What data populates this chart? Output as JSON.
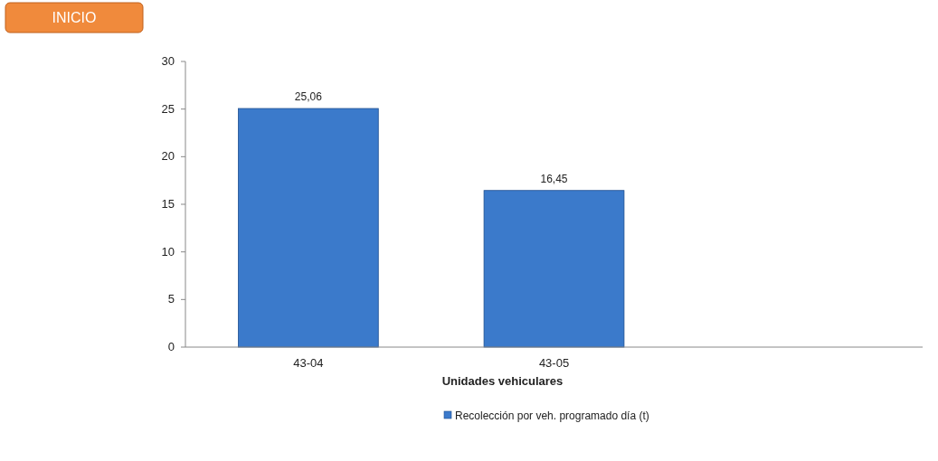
{
  "chart_data": {
    "type": "bar",
    "xlabel": "Unidades vehiculares",
    "categories": [
      "43-04",
      "43-05",
      null
    ],
    "series": [
      {
        "name": "Recolección por veh. programado día (t)",
        "color": "#3b7acb",
        "values": [
          25.06,
          16.45,
          null
        ]
      }
    ],
    "value_labels": [
      "25,06",
      "16,45",
      null
    ],
    "ylim": [
      0,
      30
    ],
    "yticks": [
      0,
      5,
      10,
      15,
      20,
      25,
      30
    ],
    "grid": false,
    "legend": "bottom",
    "annotations": [
      "INICIO"
    ]
  }
}
